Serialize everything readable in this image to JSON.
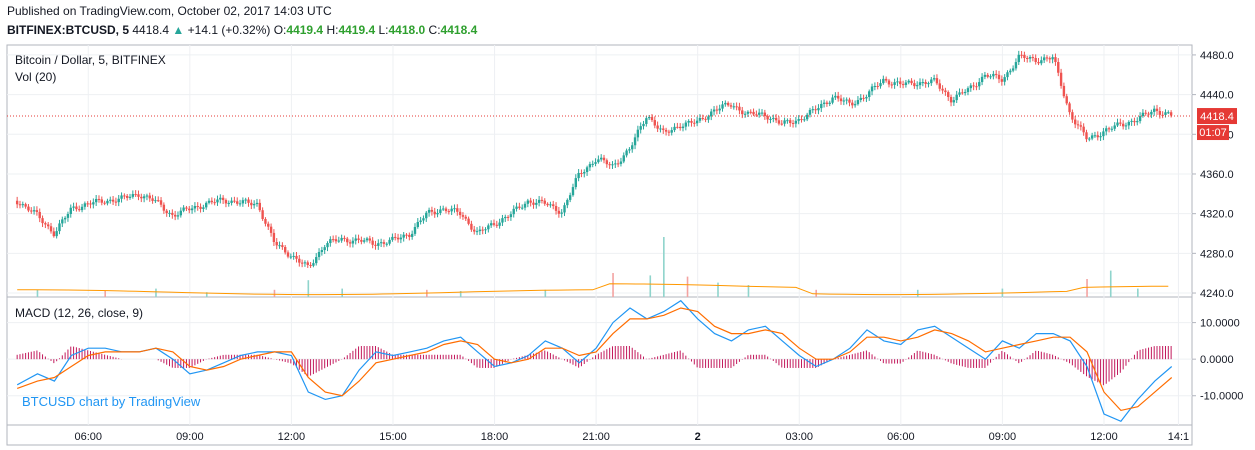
{
  "header": {
    "published": "Published on TradingView.com, October 02, 2017 14:03 UTC",
    "symbol": "BITFINEX:BTCUSD, 5",
    "last": "4418.4",
    "change": "+14.1 (+0.32%)",
    "o_label": "O:",
    "o_value": "4419.4",
    "h_label": "H:",
    "h_value": "4419.4",
    "l_label": "L:",
    "l_value": "4418.0",
    "c_label": "C:",
    "c_value": "4418.4"
  },
  "colors": {
    "up": "#26a69a",
    "down": "#ef5350",
    "macd": "#2196f3",
    "signal": "#ff6d00",
    "hist": "#c2185b",
    "price_line": "#e53935"
  },
  "chart_data": [
    {
      "type": "line",
      "title": "Bitcoin / Dollar, 5, BITFINEX",
      "subtitle": "Vol (20)",
      "x_ticks": [
        "06:00",
        "09:00",
        "12:00",
        "15:00",
        "18:00",
        "21:00",
        "2",
        "03:00",
        "06:00",
        "09:00",
        "12:00",
        "14:1"
      ],
      "x_tick_hours": [
        6,
        9,
        12,
        15,
        18,
        21,
        24,
        27,
        30,
        33,
        36,
        38.2
      ],
      "y_ticks": [
        4240,
        4280,
        4320,
        4360,
        4400,
        4440,
        4480
      ],
      "ylim": [
        4236,
        4490
      ],
      "last_price": "4418.4",
      "countdown": "01:07",
      "series": [
        {
          "hours": [
            3.9,
            4.5,
            5.0,
            5.5,
            6.0,
            6.5,
            7.0,
            7.5,
            8.0,
            8.5,
            9.0,
            9.5,
            10.0,
            10.5,
            11.0,
            11.5,
            12.0,
            12.5,
            13.0,
            13.5,
            14.0,
            14.5,
            15.0,
            15.5,
            16.0,
            16.5,
            17.0,
            17.5,
            18.0,
            18.5,
            19.0,
            19.5,
            20.0,
            20.5,
            21.0,
            21.5,
            22.0,
            22.5,
            23.0,
            23.5,
            24.0,
            24.5,
            25.0,
            25.5,
            26.0,
            26.5,
            27.0,
            27.5,
            28.0,
            28.5,
            29.0,
            29.5,
            30.0,
            30.5,
            31.0,
            31.5,
            32.0,
            32.5,
            33.0,
            33.5,
            34.0,
            34.5,
            35.0,
            35.5,
            36.0,
            36.5,
            37.0,
            37.5,
            38.0
          ],
          "close": [
            4333,
            4318,
            4300,
            4325,
            4330,
            4333,
            4335,
            4340,
            4332,
            4318,
            4325,
            4330,
            4334,
            4331,
            4330,
            4290,
            4278,
            4265,
            4290,
            4294,
            4293,
            4290,
            4293,
            4300,
            4320,
            4325,
            4320,
            4300,
            4310,
            4320,
            4333,
            4330,
            4322,
            4360,
            4375,
            4368,
            4385,
            4420,
            4400,
            4410,
            4412,
            4425,
            4430,
            4420,
            4420,
            4410,
            4415,
            4425,
            4438,
            4430,
            4440,
            4455,
            4450,
            4452,
            4453,
            4435,
            4445,
            4460,
            4455,
            4478,
            4475,
            4477,
            4420,
            4395,
            4403,
            4410,
            4415,
            4425,
            4418.4
          ]
        }
      ]
    },
    {
      "type": "bar",
      "title": "Vol (20)",
      "hours": [
        4.5,
        6.5,
        8.0,
        9.5,
        11.5,
        12.5,
        13.5,
        16.0,
        17.0,
        19.5,
        21.5,
        22.6,
        23.0,
        23.7,
        24.6,
        25.5,
        27.5,
        30.5,
        33.0,
        35.5,
        36.2,
        37.0
      ],
      "values": [
        12,
        10,
        14,
        8,
        12,
        28,
        14,
        12,
        10,
        12,
        40,
        36,
        100,
        34,
        24,
        20,
        12,
        12,
        14,
        30,
        44,
        14
      ]
    },
    {
      "type": "line",
      "title": "MACD (12, 26, close, 9)",
      "watermark": "BTCUSD chart by TradingView",
      "y_ticks": [
        "10.0000",
        "0.0000",
        "-10.0000"
      ],
      "y_tick_values": [
        10,
        0,
        -10
      ],
      "ylim": [
        -18,
        17
      ],
      "x": [
        3.9,
        4.5,
        5.0,
        5.5,
        6.0,
        6.5,
        7.0,
        7.5,
        8.0,
        8.5,
        9.0,
        9.5,
        10.0,
        10.5,
        11.0,
        11.5,
        12.0,
        12.5,
        13.0,
        13.5,
        14.0,
        14.5,
        15.0,
        15.5,
        16.0,
        16.5,
        17.0,
        17.5,
        18.0,
        18.5,
        19.0,
        19.5,
        20.0,
        20.5,
        21.0,
        21.5,
        22.0,
        22.5,
        23.0,
        23.5,
        24.0,
        24.5,
        25.0,
        25.5,
        26.0,
        26.5,
        27.0,
        27.5,
        28.0,
        28.5,
        29.0,
        29.5,
        30.0,
        30.5,
        31.0,
        31.5,
        32.0,
        32.5,
        33.0,
        33.5,
        34.0,
        34.5,
        35.0,
        35.5,
        36.0,
        36.5,
        37.0,
        37.5,
        38.0
      ],
      "series": [
        {
          "name": "MACD",
          "values": [
            -7,
            -4,
            -6,
            1,
            3,
            3,
            2,
            2,
            3,
            0,
            -4,
            -3,
            -1,
            1,
            2,
            2,
            1,
            -9,
            -11,
            -10,
            -3,
            2,
            1,
            2,
            3,
            5,
            6,
            2,
            -2,
            -1,
            1,
            5,
            3,
            -1,
            3,
            10,
            14,
            11,
            13,
            16,
            11,
            7,
            5,
            8,
            9,
            5,
            1,
            -2,
            0,
            3,
            8,
            5,
            4,
            8,
            9,
            6,
            3,
            0,
            5,
            3,
            7,
            7,
            5,
            -2,
            -15,
            -17,
            -11,
            -6,
            -2
          ]
        },
        {
          "name": "Signal",
          "values": [
            -8,
            -6,
            -5,
            -2,
            1,
            2,
            2,
            2,
            3,
            2,
            -2,
            -3,
            -2,
            0,
            1,
            2,
            2,
            -5,
            -9,
            -10,
            -6,
            -1,
            0,
            1,
            2,
            4,
            5,
            4,
            0,
            -1,
            0,
            3,
            3,
            1,
            2,
            7,
            11,
            11,
            12,
            14,
            13,
            9,
            7,
            7,
            8,
            7,
            3,
            0,
            0,
            2,
            6,
            6,
            5,
            6,
            8,
            7,
            5,
            2,
            3,
            4,
            5,
            6,
            6,
            2,
            -9,
            -14,
            -13,
            -9,
            -5
          ]
        }
      ]
    }
  ]
}
